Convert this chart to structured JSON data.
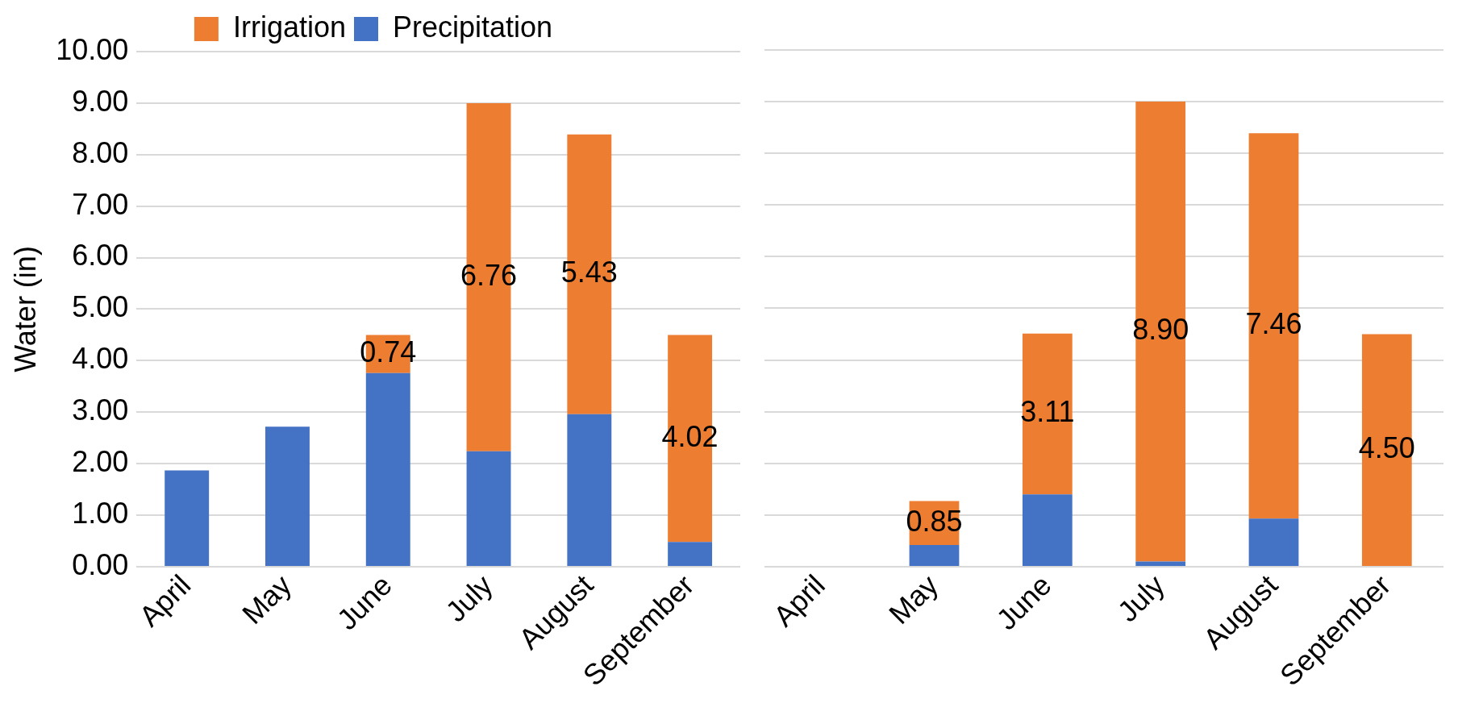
{
  "chart_data": [
    {
      "type": "bar",
      "stacked": true,
      "ylabel": "Water (in)",
      "categories": [
        "April",
        "May",
        "June",
        "July",
        "August",
        "September"
      ],
      "series": [
        {
          "name": "Precipitation",
          "color": "#4472c4",
          "values": [
            1.87,
            2.72,
            3.76,
            2.24,
            2.96,
            0.48
          ]
        },
        {
          "name": "Irrigation",
          "color": "#ed7d31",
          "values": [
            0,
            0,
            0.74,
            6.76,
            5.43,
            4.02
          ],
          "value_labels": [
            null,
            null,
            "0.74",
            "6.76",
            "5.43",
            "4.02"
          ]
        }
      ],
      "ylim": [
        0,
        10
      ],
      "yticks": [
        {
          "value": 0,
          "label": "0.00"
        },
        {
          "value": 1,
          "label": "1.00"
        },
        {
          "value": 2,
          "label": "2.00"
        },
        {
          "value": 3,
          "label": "3.00"
        },
        {
          "value": 4,
          "label": "4.00"
        },
        {
          "value": 5,
          "label": "5.00"
        },
        {
          "value": 6,
          "label": "6.00"
        },
        {
          "value": 7,
          "label": "7.00"
        },
        {
          "value": 8,
          "label": "8.00"
        },
        {
          "value": 9,
          "label": "9.00"
        },
        {
          "value": 10,
          "label": "10.00"
        }
      ],
      "grid": "y",
      "legend": "top"
    },
    {
      "type": "bar",
      "stacked": true,
      "categories": [
        "April",
        "May",
        "June",
        "July",
        "August",
        "September"
      ],
      "series": [
        {
          "color": "#4472c4",
          "values": [
            0,
            0.42,
            1.4,
            0.1,
            0.93,
            0
          ]
        },
        {
          "color": "#ed7d31",
          "values": [
            0,
            0.85,
            3.11,
            8.9,
            7.46,
            4.5
          ],
          "value_labels": [
            null,
            "0.85",
            "3.11",
            "8.90",
            "7.46",
            "4.50"
          ]
        }
      ],
      "ylim": [
        0,
        10
      ],
      "yticks": [
        {
          "value": 0,
          "label": null
        },
        {
          "value": 1,
          "label": null
        },
        {
          "value": 2,
          "label": null
        },
        {
          "value": 3,
          "label": null
        },
        {
          "value": 4,
          "label": null
        },
        {
          "value": 5,
          "label": null
        },
        {
          "value": 6,
          "label": null
        },
        {
          "value": 7,
          "label": null
        },
        {
          "value": 8,
          "label": null
        },
        {
          "value": 9,
          "label": null
        },
        {
          "value": 10,
          "label": null
        }
      ],
      "tick_labels": "x",
      "grid": "y"
    }
  ]
}
